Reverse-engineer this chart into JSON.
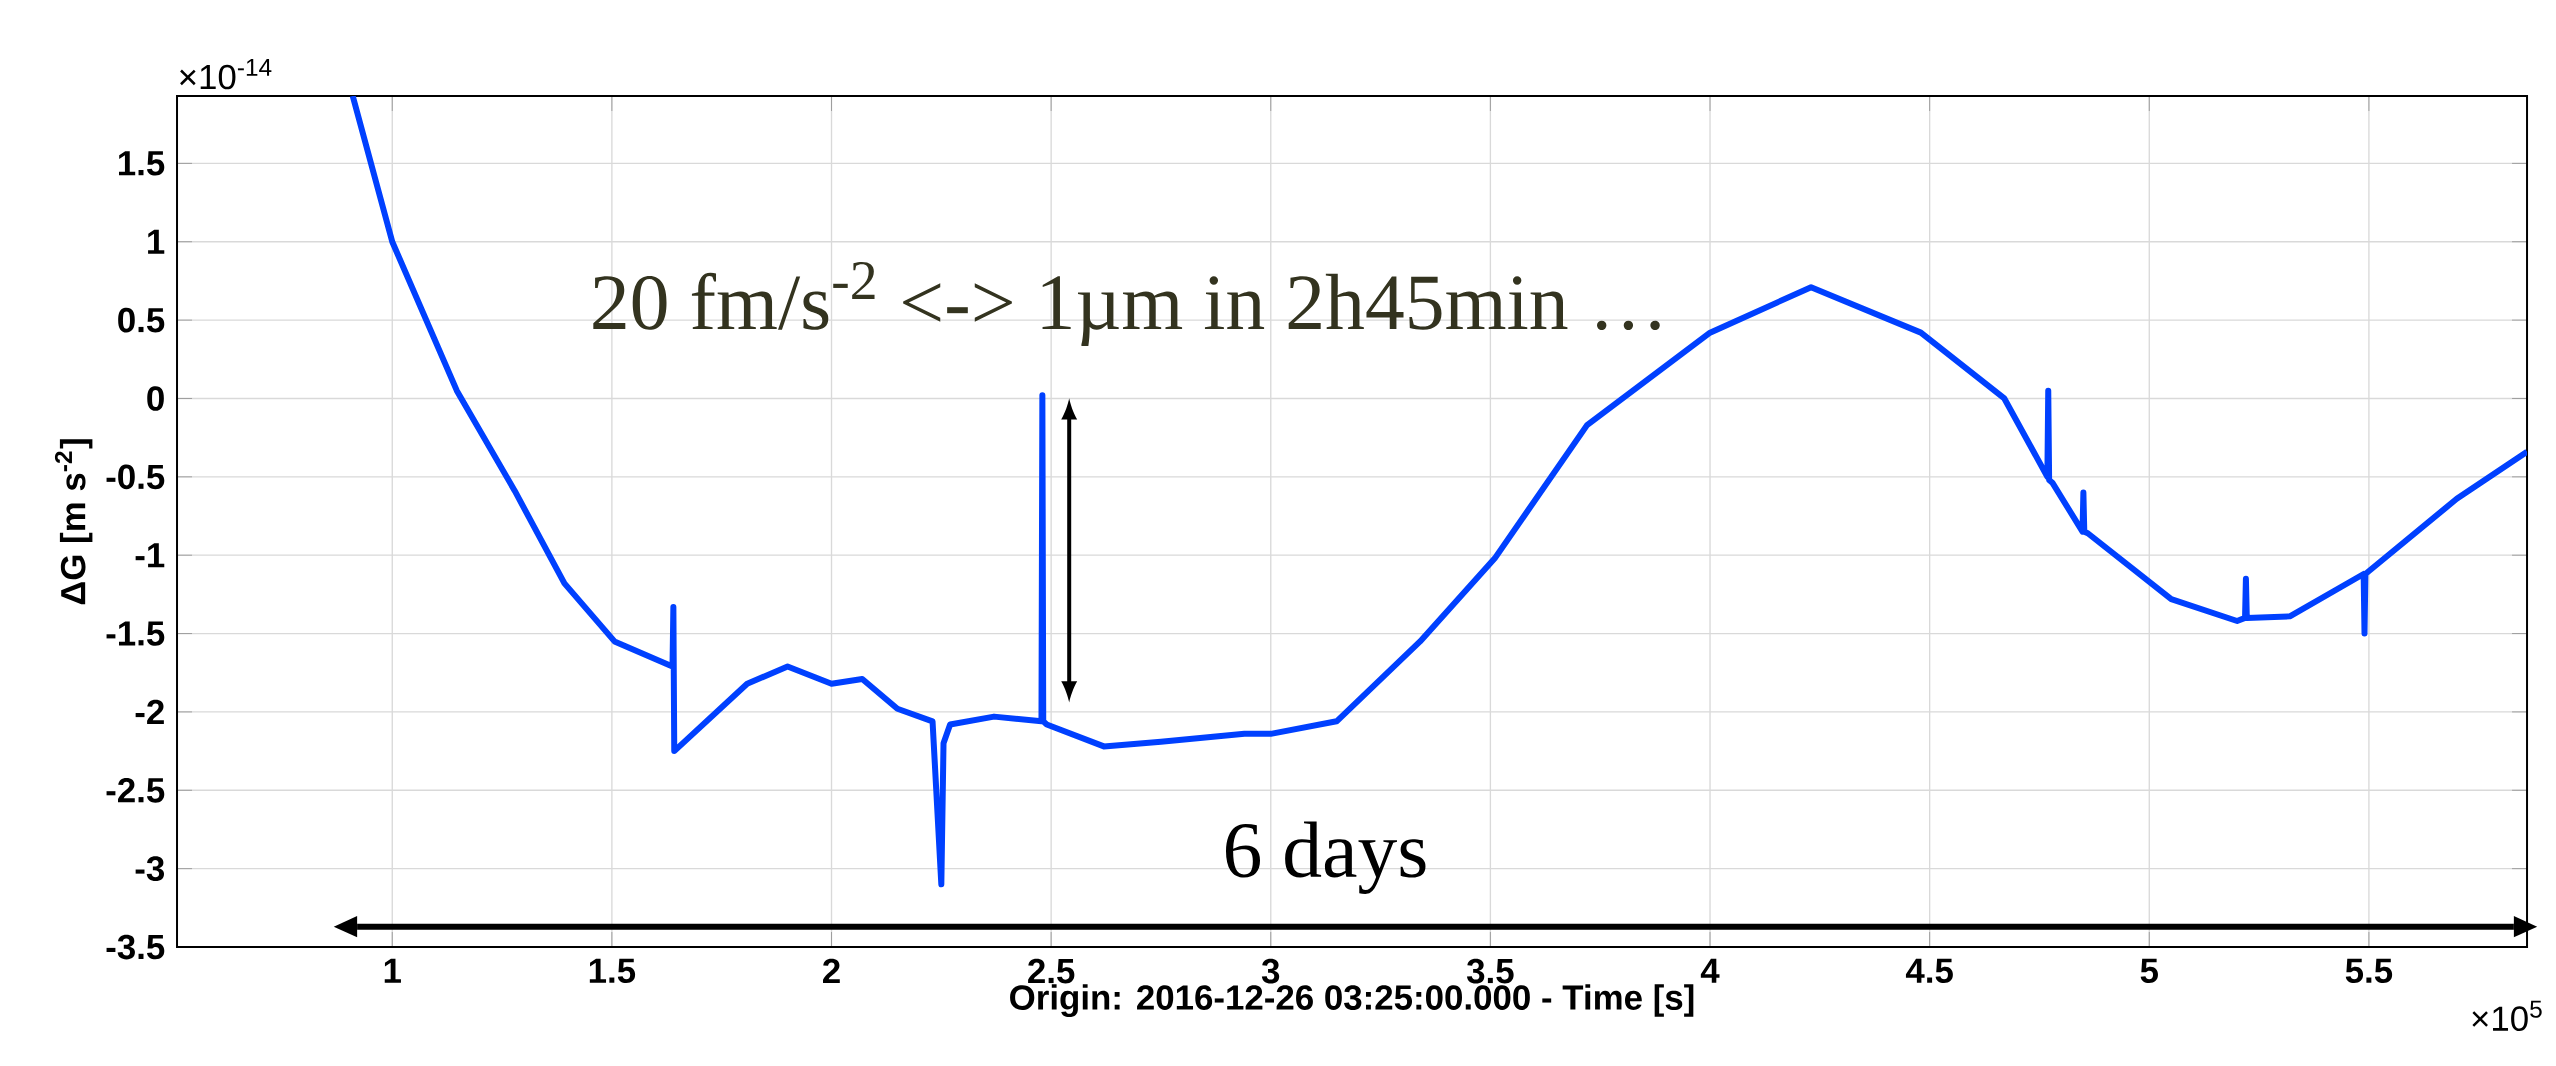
{
  "chart_data": {
    "type": "line",
    "xlabel": "Origin: 2016-12-26 03:25:00.000 - Time [s]",
    "ylabel": "ΔG [m s$^{-2}$]",
    "x": [
      0.91,
      1.0,
      1.147,
      1.279,
      1.392,
      1.506,
      1.638,
      1.64,
      1.642,
      1.808,
      1.9,
      2.0,
      2.07,
      2.15,
      2.23,
      2.25,
      2.255,
      2.27,
      2.37,
      2.478,
      2.48,
      2.482,
      2.49,
      2.62,
      2.75,
      2.94,
      3.0,
      3.15,
      3.34,
      3.51,
      3.72,
      4.0,
      4.23,
      4.48,
      4.67,
      4.768,
      4.77,
      4.772,
      4.78,
      4.848,
      4.85,
      4.852,
      4.86,
      5.05,
      5.2,
      5.218,
      5.22,
      5.222,
      5.32,
      5.488,
      5.49,
      5.492,
      5.7,
      5.86
    ],
    "series": [
      {
        "color": "#0040ff",
        "values": [
          1.93,
          1.0,
          0.05,
          -0.59,
          -1.18,
          -1.55,
          -1.71,
          -1.33,
          -2.25,
          -1.82,
          -1.71,
          -1.82,
          -1.79,
          -1.98,
          -2.06,
          -3.1,
          -2.2,
          -2.08,
          -2.03,
          -2.06,
          0.02,
          -2.06,
          -2.08,
          -2.22,
          -2.19,
          -2.14,
          -2.14,
          -2.06,
          -1.55,
          -1.02,
          -0.17,
          0.42,
          0.71,
          0.42,
          0.0,
          -0.5,
          0.05,
          -0.52,
          -0.54,
          -0.85,
          -0.6,
          -0.85,
          -0.86,
          -1.28,
          -1.42,
          -1.4,
          -1.15,
          -1.4,
          -1.39,
          -1.12,
          -1.5,
          -1.12,
          -0.64,
          -0.34
        ]
      },
      {
        "name": "6 days",
        "type": "line",
        "color": "#000000",
        "marker": "triangle",
        "x": [
          0.92,
          5.83
        ],
        "values": [
          -3.37,
          -3.37
        ]
      }
    ],
    "xlim": [
      0.51,
      5.86
    ],
    "ylim": [
      -3.5,
      1.93
    ],
    "xticks": [
      1,
      1.5,
      2,
      2.5,
      3,
      3.5,
      4,
      4.5,
      5,
      5.5
    ],
    "yticks": [
      -3.5,
      -3,
      -2.5,
      -2,
      -1.5,
      -1,
      -0.5,
      0,
      0.5,
      1,
      1.5
    ],
    "grid": true,
    "legend": false,
    "annotations": [
      "×10$^{-14}$",
      "×10$^{5}$",
      "20 fm/s$^{-2}$ <-> 1µm in 2h45min …"
    ]
  }
}
